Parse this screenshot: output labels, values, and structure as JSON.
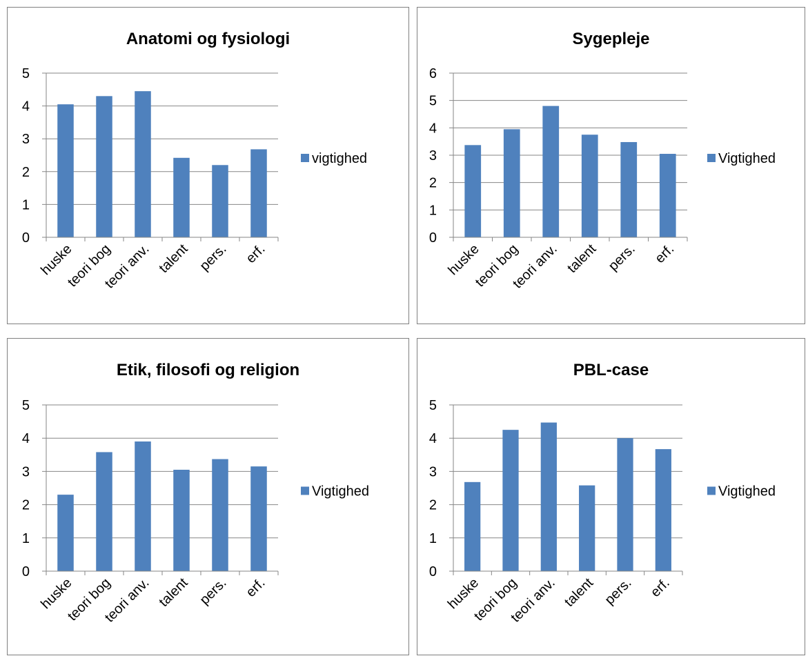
{
  "chart_data": [
    {
      "type": "bar",
      "title": "Anatomi og fysiologi",
      "categories": [
        "huske",
        "teori bog",
        "teori anv.",
        "talent",
        "pers.",
        "erf."
      ],
      "series": [
        {
          "name": "vigtighed",
          "values": [
            4.05,
            4.3,
            4.45,
            2.42,
            2.2,
            2.68
          ]
        }
      ],
      "ylim": [
        0,
        5
      ],
      "yticks": [
        0,
        1,
        2,
        3,
        4,
        5
      ],
      "xlabel": "",
      "ylabel": "",
      "grid": true,
      "legend": "right",
      "color": "#4f81bd"
    },
    {
      "type": "bar",
      "title": "Sygepleje",
      "categories": [
        "huske",
        "teori bog",
        "teori anv.",
        "talent",
        "pers.",
        "erf."
      ],
      "series": [
        {
          "name": "Vigtighed",
          "values": [
            3.37,
            3.95,
            4.8,
            3.75,
            3.48,
            3.05
          ]
        }
      ],
      "ylim": [
        0,
        6
      ],
      "yticks": [
        0,
        1,
        2,
        3,
        4,
        5,
        6
      ],
      "xlabel": "",
      "ylabel": "",
      "grid": true,
      "legend": "right",
      "color": "#4f81bd"
    },
    {
      "type": "bar",
      "title": "Etik, filosofi og religion",
      "categories": [
        "huske",
        "teori bog",
        "teori anv.",
        "talent",
        "pers.",
        "erf."
      ],
      "series": [
        {
          "name": "Vigtighed",
          "values": [
            2.3,
            3.58,
            3.9,
            3.05,
            3.37,
            3.15
          ]
        }
      ],
      "ylim": [
        0,
        5
      ],
      "yticks": [
        0,
        1,
        2,
        3,
        4,
        5
      ],
      "xlabel": "",
      "ylabel": "",
      "grid": true,
      "legend": "right",
      "color": "#4f81bd"
    },
    {
      "type": "bar",
      "title": "PBL-case",
      "categories": [
        "huske",
        "teori bog",
        "teori anv.",
        "talent",
        "pers.",
        "erf."
      ],
      "series": [
        {
          "name": "Vigtighed",
          "values": [
            2.68,
            4.25,
            4.47,
            2.58,
            4.0,
            3.67
          ]
        }
      ],
      "ylim": [
        0,
        5
      ],
      "yticks": [
        0,
        1,
        2,
        3,
        4,
        5
      ],
      "xlabel": "",
      "ylabel": "",
      "grid": true,
      "legend": "right",
      "color": "#4f81bd"
    }
  ]
}
